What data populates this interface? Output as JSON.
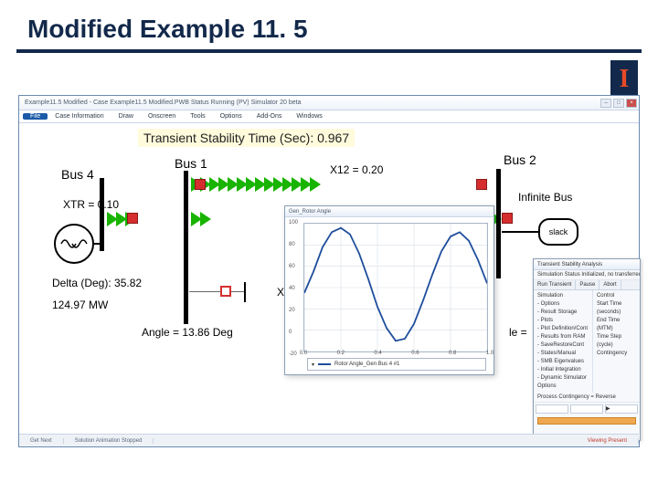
{
  "slide": {
    "title": "Modified Example 11. 5"
  },
  "logo": {
    "letter": "I"
  },
  "app": {
    "title": "Example11.5 Modified - Case Example11.5 Modified.PWB Status Running (PV) Simulator 20 beta",
    "menus": [
      "Case Information",
      "Draw",
      "Onscreen",
      "Tools",
      "Options",
      "Add-Ons",
      "Windows"
    ],
    "file_label": "File",
    "status": {
      "left": "Get Next",
      "mid": "Solution Animation Stopped",
      "right": "Viewing Present"
    }
  },
  "canvas": {
    "tst_label": "Transient Stability Time (Sec):   0.967",
    "bus1": {
      "label": "Bus 1"
    },
    "bus2": {
      "label": "Bus 2"
    },
    "bus4": {
      "label": "Bus 4"
    },
    "xtr": "XTR = 0.10",
    "x12": "X12 = 0.20",
    "x13": "X13 = 0",
    "delta": "Delta (Deg): 35.82",
    "mw": "124.97 MW",
    "angle": "Angle =  13.86 Deg",
    "angle_right": "le =",
    "infinite": "Infinite Bus",
    "slack": "slack",
    "arrow_color": "#19b400",
    "red": "#d62e2e"
  },
  "chart": {
    "title": "Gen_Rotor Angle",
    "type": "line",
    "xlim": [
      0,
      1.0
    ],
    "ylim": [
      -20,
      100
    ],
    "xtick_vals": [
      0,
      0.2,
      0.4,
      0.6,
      0.8,
      1.0
    ],
    "ytick_vals": [
      -20,
      0,
      20,
      40,
      60,
      80,
      100
    ],
    "line_color": "#1f4e9c",
    "grid_color": "#d7dee8",
    "background_color": "#ffffff",
    "legend": "Rotor Angle_Gen Bus 4 #1",
    "points": [
      [
        0.0,
        35
      ],
      [
        0.05,
        55
      ],
      [
        0.1,
        78
      ],
      [
        0.15,
        92
      ],
      [
        0.2,
        96
      ],
      [
        0.25,
        90
      ],
      [
        0.3,
        72
      ],
      [
        0.35,
        48
      ],
      [
        0.4,
        22
      ],
      [
        0.45,
        2
      ],
      [
        0.5,
        -10
      ],
      [
        0.55,
        -8
      ],
      [
        0.6,
        6
      ],
      [
        0.65,
        28
      ],
      [
        0.7,
        52
      ],
      [
        0.75,
        74
      ],
      [
        0.8,
        88
      ],
      [
        0.85,
        92
      ],
      [
        0.9,
        84
      ],
      [
        0.95,
        66
      ],
      [
        1.0,
        44
      ]
    ]
  },
  "dialog": {
    "title": "Transient Stability Analysis",
    "status_line": "Simulation Status   Initialized, no transferred",
    "tabs": [
      "Run Transient",
      "Pause",
      "Abort",
      "Restore Reference"
    ],
    "tree": [
      "Simulation",
      "- Options",
      "- Result Storage",
      "- Plots",
      "- Plot Definition/Cont",
      "- Results from RAM",
      "- SaveRestoreCont",
      "- States/Manual",
      "- SMB Eigenvalues",
      "- Initial Integration",
      "- Dynamic Simulator Options"
    ],
    "side_fields": [
      "Control",
      "Start Time (seconds)",
      "End Time (MTM)",
      "Time Step (cycle)",
      "Contingency"
    ],
    "runbar": "Process Contingency = Reverse"
  }
}
